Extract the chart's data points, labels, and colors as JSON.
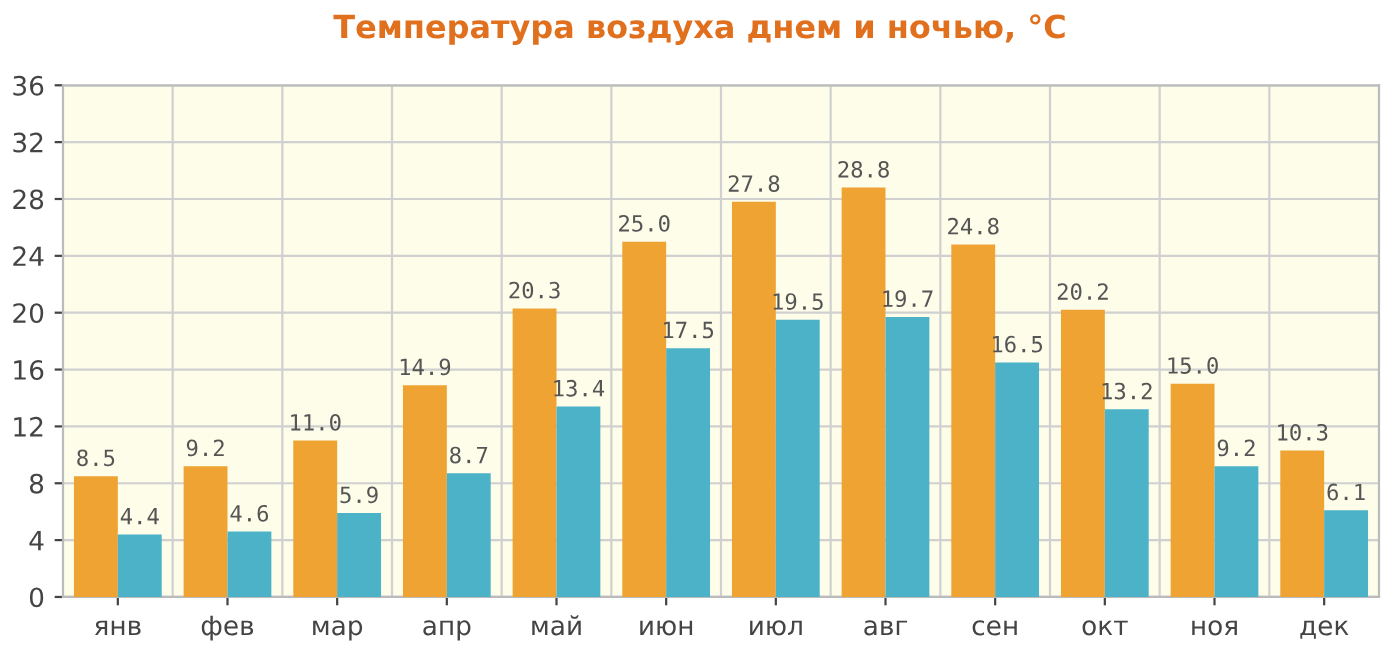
{
  "chart_data": {
    "type": "bar",
    "title": "Температура воздуха днем и ночью, °C",
    "categories": [
      "янв",
      "фев",
      "мар",
      "апр",
      "май",
      "июн",
      "июл",
      "авг",
      "сен",
      "окт",
      "ноя",
      "дек"
    ],
    "series": [
      {
        "color": "#eea332",
        "values": [
          8.5,
          9.2,
          11.0,
          14.9,
          20.3,
          25.0,
          27.8,
          28.8,
          24.8,
          20.2,
          15.0,
          10.3
        ],
        "value_labels": [
          "8.5",
          "9.2",
          "11.0",
          "14.9",
          "20.3",
          "25.0",
          "27.8",
          "28.8",
          "24.8",
          "20.2",
          "15.0",
          "10.3"
        ]
      },
      {
        "color": "#4bb2c7",
        "values": [
          4.4,
          4.6,
          5.9,
          8.7,
          13.4,
          17.5,
          19.5,
          19.7,
          16.5,
          13.2,
          9.2,
          6.1
        ],
        "value_labels": [
          "4.4",
          "4.6",
          "5.9",
          "8.7",
          "13.4",
          "17.5",
          "19.5",
          "19.7",
          "16.5",
          "13.2",
          "9.2",
          "6.1"
        ]
      }
    ],
    "ylim": [
      0,
      36
    ],
    "yticks": [
      0,
      4,
      8,
      12,
      16,
      20,
      24,
      28,
      32,
      36
    ],
    "grid": true
  }
}
